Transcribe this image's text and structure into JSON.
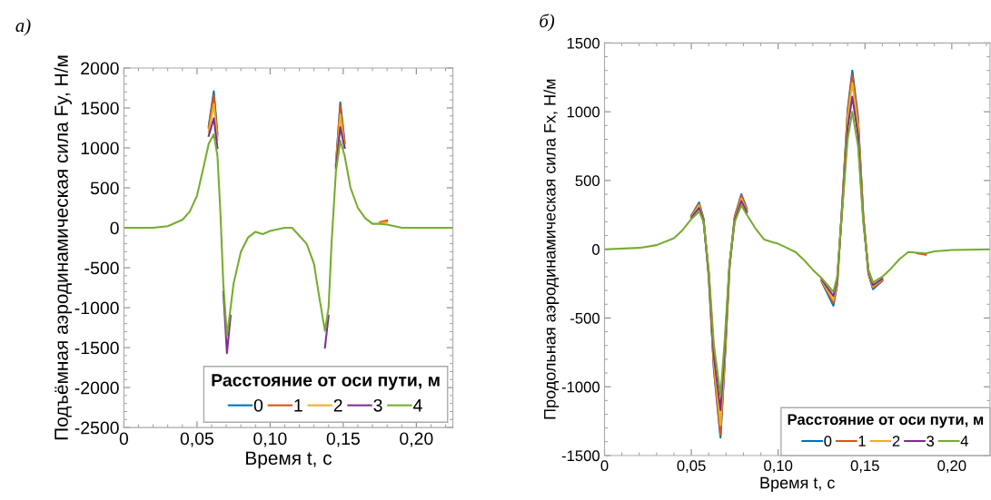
{
  "chart_data": [
    {
      "type": "line",
      "title": "а)",
      "xlabel": "Время t, с",
      "ylabel": "Подъёмная аэродинамическая сила Fy, Н/м",
      "legend_title": "Расстояние от оси пути, м",
      "legend": "bottom right",
      "grid": false,
      "line_style": "solid",
      "marker": "none",
      "x": [
        0,
        0.02,
        0.03,
        0.04,
        0.045,
        0.05,
        0.055,
        0.058,
        0.0615,
        0.064,
        0.066,
        0.068,
        0.0705,
        0.073,
        0.075,
        0.08,
        0.085,
        0.09,
        0.095,
        0.1,
        0.105,
        0.11,
        0.115,
        0.12,
        0.125,
        0.13,
        0.133,
        0.1375,
        0.14,
        0.142,
        0.145,
        0.148,
        0.151,
        0.155,
        0.16,
        0.165,
        0.17,
        0.175,
        0.18,
        0.185,
        0.19,
        0.2,
        0.225
      ],
      "xlim": [
        0,
        0.225
      ],
      "xticks": [
        0,
        {
          "value": 0.05,
          "label": "0,05"
        },
        {
          "value": 0.1,
          "label": "0,10"
        },
        {
          "value": 0.15,
          "label": "0,15"
        },
        {
          "value": 0.2,
          "label": "0,20"
        }
      ],
      "ylim": [
        -2500,
        2000
      ],
      "yticks": [
        -2500,
        -2000,
        -1500,
        -1000,
        -500,
        0,
        500,
        1000,
        1500,
        2000
      ],
      "series": [
        {
          "name": "0",
          "color": "#0072bd",
          "values": [
            null,
            null,
            null,
            null,
            null,
            null,
            null,
            1270,
            1710,
            1180,
            null,
            null,
            null,
            null,
            null,
            null,
            null,
            null,
            null,
            null,
            null,
            null,
            null,
            null,
            null,
            null,
            null,
            null,
            null,
            null,
            790,
            1570,
            1070,
            null,
            null,
            null,
            null,
            null,
            null,
            null,
            null,
            null,
            null
          ]
        },
        {
          "name": "1",
          "color": "#d95319",
          "values": [
            null,
            null,
            null,
            null,
            null,
            null,
            null,
            1250,
            1660,
            1150,
            null,
            null,
            null,
            null,
            null,
            null,
            null,
            null,
            null,
            null,
            null,
            null,
            null,
            null,
            null,
            null,
            null,
            null,
            null,
            null,
            780,
            1530,
            1050,
            null,
            null,
            null,
            null,
            70,
            90,
            null,
            null,
            null,
            null
          ]
        },
        {
          "name": "2",
          "color": "#edb120",
          "values": [
            null,
            null,
            null,
            null,
            null,
            null,
            null,
            1200,
            1550,
            1100,
            null,
            null,
            null,
            null,
            null,
            null,
            null,
            null,
            null,
            null,
            null,
            null,
            null,
            null,
            null,
            null,
            null,
            null,
            null,
            null,
            760,
            1420,
            1000,
            null,
            null,
            null,
            null,
            60,
            70,
            null,
            null,
            null,
            null
          ]
        },
        {
          "name": "3",
          "color": "#7e2f8e",
          "values": [
            null,
            null,
            null,
            null,
            null,
            null,
            null,
            1150,
            1370,
            1000,
            null,
            -800,
            -1570,
            -1100,
            null,
            null,
            null,
            null,
            null,
            null,
            null,
            null,
            null,
            null,
            null,
            null,
            null,
            -1500,
            -1100,
            null,
            750,
            1260,
            1000,
            null,
            null,
            null,
            null,
            null,
            null,
            null,
            null,
            null,
            null
          ]
        },
        {
          "name": "4",
          "color": "#77ac30",
          "values": [
            0,
            0,
            20,
            100,
            200,
            400,
            800,
            1050,
            1170,
            900,
            200,
            -700,
            -1350,
            -1000,
            -700,
            -300,
            -120,
            -50,
            -80,
            -40,
            -20,
            0,
            0,
            -100,
            -200,
            -450,
            -800,
            -1290,
            -1000,
            -200,
            700,
            1090,
            900,
            500,
            250,
            120,
            50,
            50,
            40,
            20,
            0,
            0,
            0
          ]
        }
      ]
    },
    {
      "type": "line",
      "title": "б)",
      "xlabel": "Время t, с",
      "ylabel": "Продольная аэродинамическая сила Fx, Н/м",
      "legend_title": "Расстояние от оси пути, м",
      "legend": "bottom right",
      "grid": false,
      "line_style": "solid",
      "marker": "none",
      "x": [
        0,
        0.02,
        0.03,
        0.04,
        0.045,
        0.05,
        0.0545,
        0.057,
        0.06,
        0.063,
        0.0668,
        0.069,
        0.072,
        0.075,
        0.0788,
        0.082,
        0.087,
        0.092,
        0.097,
        0.1,
        0.105,
        0.11,
        0.115,
        0.12,
        0.125,
        0.1318,
        0.134,
        0.137,
        0.14,
        0.1427,
        0.146,
        0.149,
        0.152,
        0.1546,
        0.16,
        0.165,
        0.17,
        0.175,
        0.18,
        0.185,
        0.19,
        0.2,
        0.222
      ],
      "xlim": [
        0,
        0.222
      ],
      "xticks": [
        0,
        {
          "value": 0.05,
          "label": "0,05"
        },
        {
          "value": 0.1,
          "label": "0,10"
        },
        {
          "value": 0.15,
          "label": "0,15"
        },
        {
          "value": 0.2,
          "label": "0,20"
        }
      ],
      "ylim": [
        -1500,
        1500
      ],
      "yticks": [
        -1500,
        -1000,
        -500,
        0,
        500,
        1000,
        1500
      ],
      "series": [
        {
          "name": "0",
          "color": "#0072bd",
          "values": [
            null,
            null,
            null,
            null,
            null,
            245,
            340,
            225,
            -195,
            -880,
            -1370,
            -880,
            -130,
            240,
            400,
            295,
            null,
            null,
            null,
            null,
            null,
            null,
            null,
            null,
            -235,
            -410,
            -260,
            345,
            1010,
            1300,
            960,
            250,
            -180,
            -290,
            -230,
            null,
            null,
            null,
            null,
            null,
            null,
            null,
            null
          ]
        },
        {
          "name": "1",
          "color": "#d95319",
          "values": [
            null,
            null,
            null,
            null,
            null,
            240,
            330,
            220,
            -190,
            -870,
            -1350,
            -870,
            -125,
            235,
            390,
            290,
            null,
            null,
            null,
            null,
            null,
            null,
            null,
            null,
            -230,
            -390,
            -250,
            340,
            990,
            1270,
            940,
            245,
            -175,
            -280,
            -225,
            null,
            null,
            null,
            -30,
            -40,
            null,
            null,
            null
          ]
        },
        {
          "name": "2",
          "color": "#edb120",
          "values": [
            null,
            null,
            null,
            null,
            null,
            235,
            320,
            215,
            -180,
            -830,
            -1280,
            -830,
            -120,
            225,
            370,
            280,
            null,
            null,
            null,
            null,
            null,
            null,
            null,
            null,
            -225,
            -370,
            -235,
            330,
            950,
            1210,
            900,
            235,
            -170,
            -270,
            -220,
            null,
            null,
            null,
            null,
            null,
            null,
            null,
            null
          ]
        },
        {
          "name": "3",
          "color": "#7e2f8e",
          "values": [
            null,
            null,
            null,
            null,
            null,
            230,
            300,
            210,
            -170,
            -780,
            -1170,
            -770,
            -110,
            215,
            350,
            270,
            null,
            null,
            null,
            null,
            null,
            null,
            null,
            null,
            -220,
            -340,
            -220,
            320,
            880,
            1110,
            830,
            220,
            -160,
            -260,
            -215,
            null,
            null,
            null,
            null,
            null,
            null,
            null,
            null
          ]
        },
        {
          "name": "4",
          "color": "#77ac30",
          "values": [
            0,
            10,
            30,
            80,
            140,
            220,
            275,
            200,
            -150,
            -700,
            -1060,
            -700,
            -100,
            200,
            320,
            250,
            150,
            70,
            50,
            40,
            10,
            -20,
            -80,
            -150,
            -210,
            -310,
            -200,
            300,
            800,
            1000,
            750,
            200,
            -150,
            -240,
            -200,
            -140,
            -70,
            -20,
            -25,
            -30,
            -15,
            -5,
            0
          ]
        }
      ]
    }
  ]
}
